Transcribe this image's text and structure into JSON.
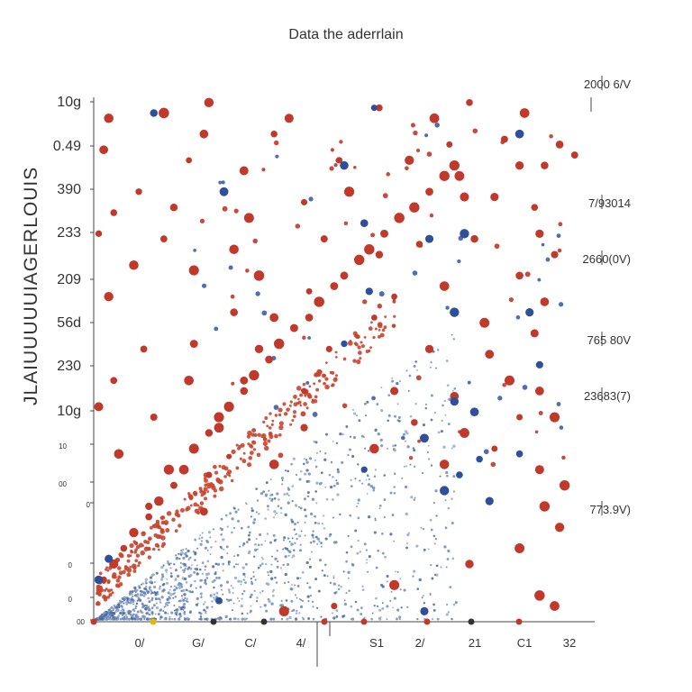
{
  "chart_data": {
    "type": "scatter",
    "title": "Data the aderrlain",
    "ylabel": "JLAIUUUUUIAGERLOUIS",
    "xlabel": "",
    "y_tick_labels": [
      "10g",
      "0.49",
      "390",
      "233",
      "209",
      "56d",
      "230",
      "10g",
      "10",
      "00",
      "0",
      "0",
      "0",
      "00"
    ],
    "x_tick_labels": [
      "0/",
      "G/",
      "C/",
      "4/",
      "S1",
      "2/",
      "21",
      "C1",
      "32"
    ],
    "right_labels": [
      {
        "text": "2000 6/V",
        "color": "#c0392b"
      },
      {
        "text": "7/93014",
        "color": "#333333"
      },
      {
        "text": "2660(0V)",
        "color": "#333333"
      },
      {
        "text": "765 80V",
        "color": "#333333"
      },
      {
        "text": "23683(7)",
        "color": "#333333"
      },
      {
        "text": "773.9V)",
        "color": "#333333"
      }
    ],
    "xlim": [
      0,
      1
    ],
    "ylim": [
      0,
      1
    ],
    "series": [
      {
        "color": "#c0392b",
        "kind": "large-red-points"
      },
      {
        "color": "#2c4a9a",
        "kind": "large-blue-points"
      },
      {
        "color": "#6c8fbf",
        "kind": "small-blue-dense-cloud"
      },
      {
        "color": "#d45a3a",
        "kind": "small-red-upper-band"
      }
    ],
    "large_red_points": [
      [
        0.03,
        0.96
      ],
      [
        0.14,
        0.97
      ],
      [
        0.23,
        0.99
      ],
      [
        0.39,
        0.96
      ],
      [
        0.57,
        0.98
      ],
      [
        0.75,
        0.99
      ],
      [
        0.68,
        0.96
      ],
      [
        0.86,
        0.97
      ],
      [
        0.22,
        0.93
      ],
      [
        0.36,
        0.93
      ],
      [
        0.02,
        0.9
      ],
      [
        0.19,
        0.88
      ],
      [
        0.49,
        0.88
      ],
      [
        0.71,
        0.91
      ],
      [
        0.82,
        0.92
      ],
      [
        0.93,
        0.91
      ],
      [
        0.96,
        0.89
      ],
      [
        0.63,
        0.88
      ],
      [
        0.09,
        0.82
      ],
      [
        0.3,
        0.86
      ],
      [
        0.51,
        0.82
      ],
      [
        0.73,
        0.85
      ],
      [
        0.85,
        0.87
      ],
      [
        0.9,
        0.87
      ],
      [
        0.04,
        0.78
      ],
      [
        0.16,
        0.79
      ],
      [
        0.31,
        0.77
      ],
      [
        0.42,
        0.8
      ],
      [
        0.74,
        0.81
      ],
      [
        0.8,
        0.81
      ],
      [
        0.88,
        0.79
      ],
      [
        0.01,
        0.74
      ],
      [
        0.14,
        0.73
      ],
      [
        0.28,
        0.71
      ],
      [
        0.46,
        0.73
      ],
      [
        0.57,
        0.7
      ],
      [
        0.65,
        0.72
      ],
      [
        0.76,
        0.73
      ],
      [
        0.89,
        0.74
      ],
      [
        0.08,
        0.68
      ],
      [
        0.2,
        0.67
      ],
      [
        0.33,
        0.66
      ],
      [
        0.43,
        0.63
      ],
      [
        0.6,
        0.62
      ],
      [
        0.7,
        0.64
      ],
      [
        0.85,
        0.66
      ],
      [
        0.92,
        0.7
      ],
      [
        0.03,
        0.62
      ],
      [
        0.28,
        0.59
      ],
      [
        0.36,
        0.58
      ],
      [
        0.56,
        0.58
      ],
      [
        0.78,
        0.57
      ],
      [
        0.9,
        0.61
      ],
      [
        0.1,
        0.52
      ],
      [
        0.2,
        0.53
      ],
      [
        0.33,
        0.52
      ],
      [
        0.47,
        0.52
      ],
      [
        0.67,
        0.52
      ],
      [
        0.79,
        0.51
      ],
      [
        0.88,
        0.55
      ],
      [
        0.04,
        0.46
      ],
      [
        0.19,
        0.46
      ],
      [
        0.3,
        0.46
      ],
      [
        0.42,
        0.44
      ],
      [
        0.6,
        0.44
      ],
      [
        0.72,
        0.43
      ],
      [
        0.83,
        0.46
      ],
      [
        0.89,
        0.44
      ],
      [
        0.01,
        0.41
      ],
      [
        0.12,
        0.39
      ],
      [
        0.25,
        0.37
      ],
      [
        0.42,
        0.37
      ],
      [
        0.64,
        0.38
      ],
      [
        0.74,
        0.36
      ],
      [
        0.85,
        0.39
      ],
      [
        0.92,
        0.39
      ],
      [
        0.05,
        0.32
      ],
      [
        0.15,
        0.29
      ],
      [
        0.23,
        0.28
      ],
      [
        0.36,
        0.3
      ],
      [
        0.56,
        0.33
      ],
      [
        0.7,
        0.3
      ],
      [
        0.8,
        0.33
      ],
      [
        0.89,
        0.29
      ],
      [
        0.94,
        0.26
      ],
      [
        0.11,
        0.22
      ],
      [
        0.22,
        0.21
      ],
      [
        0.9,
        0.22
      ],
      [
        0.93,
        0.18
      ],
      [
        0.85,
        0.14
      ],
      [
        0.75,
        0.11
      ],
      [
        0.6,
        0.07
      ],
      [
        0.48,
        0.03
      ],
      [
        0.38,
        0.02
      ],
      [
        0.89,
        0.05
      ],
      [
        0.92,
        0.03
      ],
      [
        0.06,
        0.14
      ],
      [
        0.04,
        0.11
      ],
      [
        0.02,
        0.08
      ],
      [
        0.08,
        0.17
      ],
      [
        0.11,
        0.2
      ],
      [
        0.13,
        0.23
      ],
      [
        0.16,
        0.26
      ],
      [
        0.18,
        0.29
      ],
      [
        0.2,
        0.33
      ],
      [
        0.23,
        0.36
      ],
      [
        0.25,
        0.39
      ],
      [
        0.27,
        0.41
      ],
      [
        0.3,
        0.44
      ],
      [
        0.32,
        0.47
      ],
      [
        0.35,
        0.5
      ],
      [
        0.37,
        0.53
      ],
      [
        0.4,
        0.56
      ],
      [
        0.43,
        0.58
      ],
      [
        0.45,
        0.61
      ],
      [
        0.48,
        0.64
      ],
      [
        0.5,
        0.66
      ],
      [
        0.53,
        0.69
      ],
      [
        0.55,
        0.71
      ],
      [
        0.58,
        0.74
      ],
      [
        0.61,
        0.77
      ],
      [
        0.64,
        0.79
      ],
      [
        0.67,
        0.82
      ],
      [
        0.7,
        0.85
      ],
      [
        0.72,
        0.87
      ]
    ],
    "large_blue_points": [
      [
        0.12,
        0.97
      ],
      [
        0.56,
        0.98
      ],
      [
        0.85,
        0.93
      ],
      [
        0.5,
        0.87
      ],
      [
        0.26,
        0.82
      ],
      [
        0.54,
        0.76
      ],
      [
        0.74,
        0.74
      ],
      [
        0.67,
        0.73
      ],
      [
        0.55,
        0.63
      ],
      [
        0.72,
        0.59
      ],
      [
        0.87,
        0.59
      ],
      [
        0.5,
        0.53
      ],
      [
        0.89,
        0.49
      ],
      [
        0.72,
        0.42
      ],
      [
        0.76,
        0.4
      ],
      [
        0.66,
        0.35
      ],
      [
        0.77,
        0.31
      ],
      [
        0.85,
        0.32
      ],
      [
        0.73,
        0.28
      ],
      [
        0.54,
        0.29
      ],
      [
        0.7,
        0.25
      ],
      [
        0.79,
        0.23
      ],
      [
        0.03,
        0.12
      ],
      [
        0.01,
        0.08
      ],
      [
        0.25,
        0.04
      ],
      [
        0.66,
        0.02
      ]
    ],
    "scatter_points_large_small": "rendered from seeded distribution by script"
  }
}
